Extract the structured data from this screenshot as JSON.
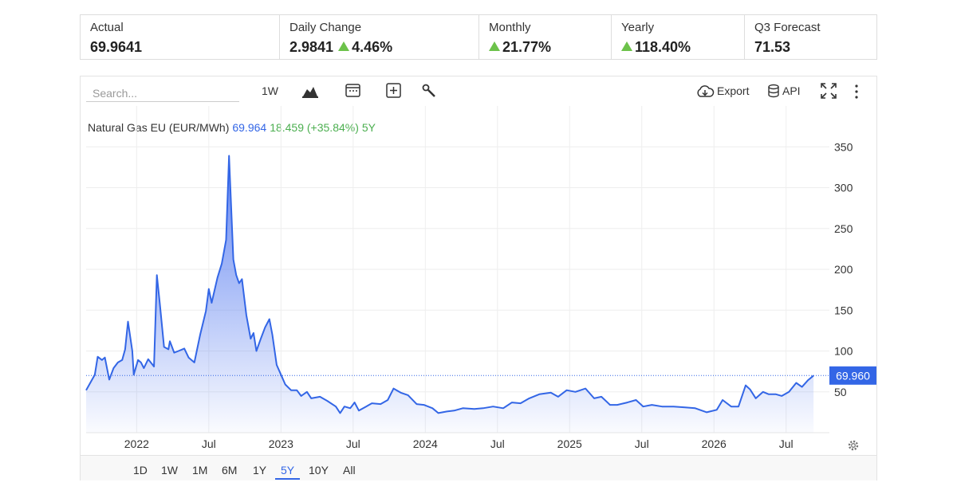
{
  "stats": [
    {
      "label": "Actual",
      "value": "69.9641"
    },
    {
      "label": "Daily Change",
      "value": "2.9841",
      "change": "4.46%"
    },
    {
      "label": "Monthly",
      "change": "21.77%"
    },
    {
      "label": "Yearly",
      "change": "118.40%"
    },
    {
      "label": "Q3 Forecast",
      "value": "71.53"
    }
  ],
  "toolbar": {
    "search_placeholder": "Search...",
    "interval": "1W",
    "export": "Export",
    "api": "API"
  },
  "ranges": [
    "1D",
    "1W",
    "1M",
    "6M",
    "1Y",
    "5Y",
    "10Y",
    "All"
  ],
  "active_range": 5,
  "chart_data": {
    "type": "area",
    "last": "69.964",
    "change": "18.459 (+35.84%)",
    "period": "5Y",
    "series": [
      {
        "name": "Natural Gas EU (EUR/MWh)",
        "color": "#3366e6",
        "x": [
          2021.65,
          2021.71,
          2021.73,
          2021.76,
          2021.78,
          2021.81,
          2021.84,
          2021.87,
          2021.9,
          2021.92,
          2021.94,
          2021.97,
          2021.98,
          2022.01,
          2022.03,
          2022.05,
          2022.08,
          2022.12,
          2022.14,
          2022.16,
          2022.19,
          2022.22,
          2022.23,
          2022.26,
          2022.29,
          2022.33,
          2022.36,
          2022.4,
          2022.44,
          2022.48,
          2022.5,
          2022.52,
          2022.56,
          2022.59,
          2022.62,
          2022.64,
          2022.67,
          2022.69,
          2022.71,
          2022.73,
          2022.76,
          2022.79,
          2022.81,
          2022.83,
          2022.86,
          2022.89,
          2022.92,
          2022.94,
          2022.97,
          2023.0,
          2023.03,
          2023.07,
          2023.11,
          2023.14,
          2023.18,
          2023.21,
          2023.27,
          2023.32,
          2023.38,
          2023.41,
          2023.44,
          2023.48,
          2023.51,
          2023.54,
          2023.59,
          2023.63,
          2023.69,
          2023.74,
          2023.78,
          2023.83,
          2023.88,
          2023.94,
          2023.99,
          2024.05,
          2024.09,
          2024.15,
          2024.2,
          2024.26,
          2024.34,
          2024.4,
          2024.47,
          2024.54,
          2024.6,
          2024.66,
          2024.72,
          2024.79,
          2024.87,
          2024.92,
          2024.98,
          2025.04,
          2025.11,
          2025.17,
          2025.22,
          2025.28,
          2025.33,
          2025.4,
          2025.46,
          2025.51,
          2025.57,
          2025.64,
          2025.72,
          2025.8,
          2025.87,
          2025.95,
          2026.02,
          2026.06,
          2026.12,
          2026.17,
          2026.22,
          2026.25,
          2026.29,
          2026.34,
          2026.38,
          2026.43,
          2026.47,
          2026.52,
          2026.57,
          2026.61,
          2026.65,
          2026.69
        ],
        "values": [
          52,
          71,
          93,
          89,
          92,
          65,
          79,
          86,
          89,
          102,
          136,
          100,
          71,
          89,
          86,
          79,
          90,
          81,
          193,
          159,
          105,
          102,
          112,
          98,
          100,
          103,
          92,
          86,
          120,
          149,
          176,
          159,
          190,
          207,
          236,
          339,
          212,
          193,
          183,
          188,
          144,
          115,
          122,
          100,
          115,
          129,
          139,
          120,
          83,
          71,
          59,
          52,
          52,
          45,
          50,
          42,
          44,
          39,
          32,
          24,
          32,
          30,
          37,
          27,
          32,
          36,
          35,
          40,
          54,
          49,
          46,
          35,
          34,
          30,
          24,
          26,
          27,
          30,
          29,
          30,
          32,
          30,
          37,
          36,
          42,
          47,
          49,
          44,
          52,
          50,
          54,
          42,
          44,
          34,
          34,
          37,
          40,
          32,
          34,
          32,
          32,
          31,
          30,
          25,
          28,
          40,
          32,
          32,
          58,
          53,
          42,
          50,
          47,
          47,
          45,
          50,
          61,
          56,
          64,
          70
        ]
      }
    ],
    "current": {
      "value": 69.96,
      "label": "69.960"
    },
    "xlim": [
      2021.65,
      2026.8
    ],
    "xticks": [
      {
        "value": 2022,
        "label": "2022"
      },
      {
        "value": 2022.5,
        "label": "Jul"
      },
      {
        "value": 2023,
        "label": "2023"
      },
      {
        "value": 2023.5,
        "label": "Jul"
      },
      {
        "value": 2024,
        "label": "2024"
      },
      {
        "value": 2024.5,
        "label": "Jul"
      },
      {
        "value": 2025,
        "label": "2025"
      },
      {
        "value": 2025.5,
        "label": "Jul"
      },
      {
        "value": 2026,
        "label": "2026"
      },
      {
        "value": 2026.5,
        "label": "Jul"
      }
    ],
    "ylim": [
      0,
      400
    ],
    "yticks": [
      50,
      100,
      150,
      200,
      250,
      300,
      350
    ],
    "grid": true
  }
}
